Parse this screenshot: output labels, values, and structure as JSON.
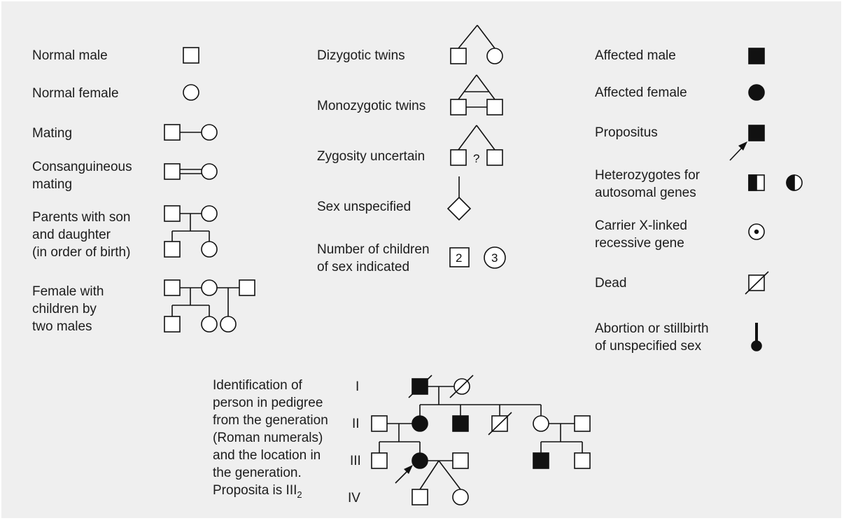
{
  "legend": {
    "normal_male": "Normal male",
    "normal_female": "Normal female",
    "mating": "Mating",
    "consanguineous_mating": "Consanguineous\nmating",
    "parents_son_daughter": "Parents with son\nand daughter\n(in order of birth)",
    "female_two_males": "Female with\nchildren by\ntwo males",
    "dizygotic_twins": "Dizygotic twins",
    "monozygotic_twins": "Monozygotic twins",
    "zygosity_uncertain": "Zygosity uncertain",
    "zygosity_mark": "?",
    "sex_unspecified": "Sex unspecified",
    "number_children": "Number of children\nof sex indicated",
    "number_male": "2",
    "number_female": "3",
    "affected_male": "Affected male",
    "affected_female": "Affected female",
    "propositus": "Propositus",
    "heterozygotes": "Heterozygotes for\nautosomal genes",
    "carrier_x": "Carrier X-linked\nrecessive gene",
    "dead": "Dead",
    "abortion": "Abortion or stillbirth\nof unspecified sex"
  },
  "pedigree": {
    "description": "Identification of\nperson in pedigree\nfrom the generation\n(Roman numerals)\nand the location in\nthe generation.\nProposita is III",
    "description_sub": "2",
    "generations": [
      "I",
      "II",
      "III",
      "IV"
    ]
  },
  "colors": {
    "panel_background": "#efefef",
    "symbol_stroke": "#111111",
    "text": "#1c1c1c"
  }
}
